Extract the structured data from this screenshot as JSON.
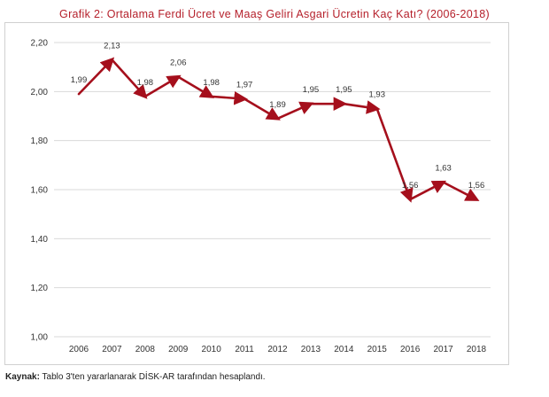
{
  "chart_data": {
    "type": "line",
    "title": "Grafik 2: Ortalama Ferdi Ücret ve Maaş Geliri Asgari Ücretin Kaç Katı? (2006-2018)",
    "categories": [
      "2006",
      "2007",
      "2008",
      "2009",
      "2010",
      "2011",
      "2012",
      "2013",
      "2014",
      "2015",
      "2016",
      "2017",
      "2018"
    ],
    "values": [
      1.99,
      2.13,
      1.98,
      2.06,
      1.98,
      1.97,
      1.89,
      1.95,
      1.95,
      1.93,
      1.56,
      1.63,
      1.56
    ],
    "value_labels": [
      "1,99",
      "2,13",
      "1,98",
      "2,06",
      "1,98",
      "1,97",
      "1,89",
      "1,95",
      "1,95",
      "1,93",
      "1,56",
      "1,63",
      "1,56"
    ],
    "ylim": [
      1.0,
      2.2
    ],
    "yticks": [
      1.0,
      1.2,
      1.4,
      1.6,
      1.8,
      2.0,
      2.2
    ],
    "ytick_labels": [
      "1,00",
      "1,20",
      "1,40",
      "1,60",
      "1,80",
      "2,00",
      "2,20"
    ],
    "xlabel": "",
    "ylabel": "",
    "grid": true,
    "line_color": "#a50f1c"
  },
  "source": {
    "label": "Kaynak:",
    "text": "Tablo 3'ten yararlanarak DİSK-AR tarafından hesaplandı."
  }
}
